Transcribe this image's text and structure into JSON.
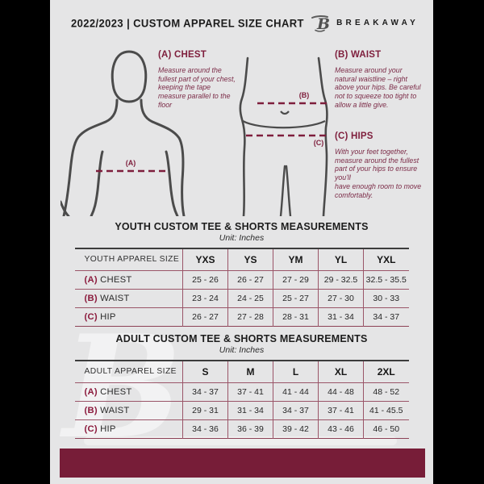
{
  "header": {
    "title": "2022/2023  |  CUSTOM APPAREL SIZE CHART",
    "brand": "BREAKAWAY",
    "logo_letter": "B"
  },
  "figures": {
    "chest_marker": "(A)",
    "waist_marker": "(B)",
    "hips_marker": "(C)"
  },
  "guide": {
    "chest": {
      "heading": "(A) CHEST",
      "body": "Measure around the fullest part of your chest, keeping the tape measure parallel to the floor"
    },
    "waist": {
      "heading": "(B) WAIST",
      "body": "Measure around your natural waistline – right above your hips. Be careful not to squeeze too tight to allow a little give."
    },
    "hips": {
      "heading": "(C) HIPS",
      "body": "With your feet together, measure around the fullest part of your hips to ensure you'll\nhave enough room to move comfortably."
    }
  },
  "youth_table": {
    "title": "YOUTH CUSTOM TEE & SHORTS MEASUREMENTS",
    "unit": "Unit: Inches",
    "header": [
      "YOUTH APPAREL SIZE",
      "YXS",
      "YS",
      "YM",
      "YL",
      "YXL"
    ],
    "rows": [
      {
        "prefix": "(A)",
        "label": "CHEST",
        "values": [
          "25 - 26",
          "26 - 27",
          "27 - 29",
          "29 - 32.5",
          "32.5 - 35.5"
        ]
      },
      {
        "prefix": "(B)",
        "label": "WAIST",
        "values": [
          "23 - 24",
          "24 - 25",
          "25 - 27",
          "27 - 30",
          "30 - 33"
        ]
      },
      {
        "prefix": "(C)",
        "label": "HIP",
        "values": [
          "26 - 27",
          "27 - 28",
          "28 - 31",
          "31 - 34",
          "34 - 37"
        ]
      }
    ]
  },
  "adult_table": {
    "title": "ADULT CUSTOM TEE & SHORTS MEASUREMENTS",
    "unit": "Unit: Inches",
    "header": [
      "ADULT APPAREL SIZE",
      "S",
      "M",
      "L",
      "XL",
      "2XL"
    ],
    "rows": [
      {
        "prefix": "(A)",
        "label": "CHEST",
        "values": [
          "34 - 37",
          "37 - 41",
          "41 - 44",
          "44 - 48",
          "48 - 52"
        ]
      },
      {
        "prefix": "(B)",
        "label": "WAIST",
        "values": [
          "29 - 31",
          "31 - 34",
          "34 - 37",
          "37 - 41",
          "41 - 45.5"
        ]
      },
      {
        "prefix": "(C)",
        "label": "HIP",
        "values": [
          "34 - 36",
          "36 - 39",
          "39 - 42",
          "43 - 46",
          "46 - 50"
        ]
      }
    ]
  },
  "colors": {
    "maroon": "#771d38",
    "maroon_text": "#7e1e3c",
    "table_line": "#9a5568",
    "background": "#e5e5e6",
    "letterbox": "#000000",
    "text_dark": "#222222",
    "figure_stroke": "#4b4b4b"
  }
}
